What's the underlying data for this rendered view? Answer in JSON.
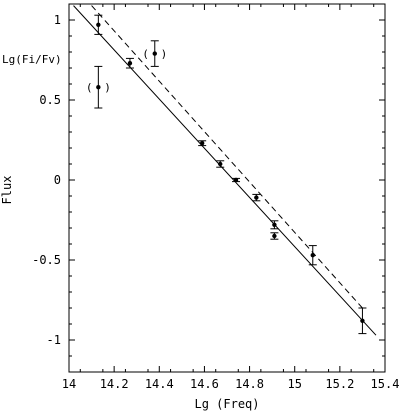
{
  "chart_data": {
    "type": "scatter",
    "xlabel": "Lg (Freq)",
    "ylabel": "Flux",
    "inset_label": "Lg(Fi/Fv)",
    "xlim": [
      14.0,
      15.4
    ],
    "ylim": [
      -1.2,
      1.1
    ],
    "x_ticks": [
      "14",
      "14.2",
      "14.4",
      "14.6",
      "14.8",
      "15",
      "15.2",
      "15.4"
    ],
    "x_tick_values": [
      14.0,
      14.2,
      14.4,
      14.6,
      14.8,
      15.0,
      15.2,
      15.4
    ],
    "y_ticks": [
      "1",
      "0.5",
      "0",
      "-0.5",
      "-1"
    ],
    "y_tick_values": [
      1.0,
      0.5,
      0.0,
      -0.5,
      -1.0
    ],
    "grid": false,
    "points": [
      {
        "x": 14.13,
        "y": 0.97,
        "err": 0.06,
        "excluded": false
      },
      {
        "x": 14.13,
        "y": 0.58,
        "err": 0.13,
        "excluded": true
      },
      {
        "x": 14.27,
        "y": 0.73,
        "err": 0.03,
        "excluded": false
      },
      {
        "x": 14.38,
        "y": 0.79,
        "err": 0.08,
        "excluded": true
      },
      {
        "x": 14.59,
        "y": 0.23,
        "err": 0.015,
        "excluded": false
      },
      {
        "x": 14.67,
        "y": 0.1,
        "err": 0.02,
        "excluded": false
      },
      {
        "x": 14.74,
        "y": 0.0,
        "err": 0.01,
        "excluded": false
      },
      {
        "x": 14.83,
        "y": -0.11,
        "err": 0.02,
        "excluded": false
      },
      {
        "x": 14.91,
        "y": -0.28,
        "err": 0.025,
        "excluded": false
      },
      {
        "x": 14.91,
        "y": -0.35,
        "err": 0.02,
        "excluded": false
      },
      {
        "x": 15.08,
        "y": -0.47,
        "err": 0.06,
        "excluded": false
      },
      {
        "x": 15.3,
        "y": -0.88,
        "err": 0.08,
        "excluded": false
      }
    ],
    "fits": [
      {
        "style": "solid",
        "x": [
          14.02,
          15.36
        ],
        "y": [
          1.09,
          -0.97
        ]
      },
      {
        "style": "dashed",
        "x": [
          14.1,
          15.3
        ],
        "y": [
          1.09,
          -0.8
        ]
      }
    ]
  }
}
